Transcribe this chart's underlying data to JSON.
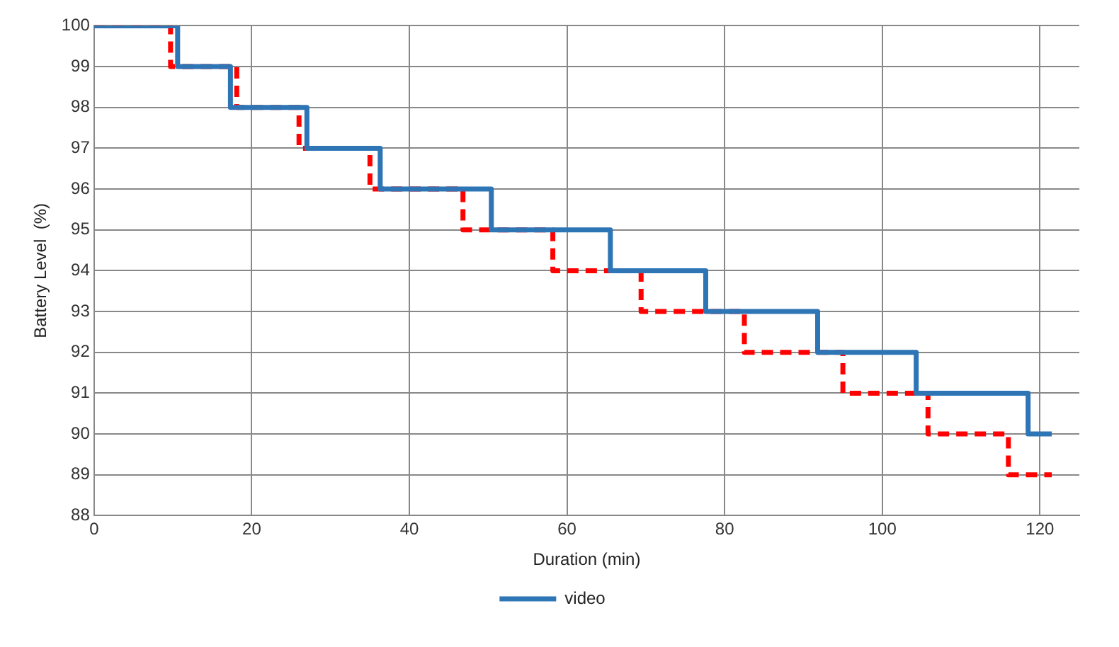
{
  "chart_data": {
    "type": "step",
    "xlabel": "Duration (min)",
    "ylabel": "Battery Level  (%)",
    "xlim": [
      0,
      125
    ],
    "xticks": [
      0,
      20,
      40,
      60,
      80,
      100,
      120
    ],
    "ylim": [
      88,
      100
    ],
    "yticks": [
      88,
      89,
      90,
      91,
      92,
      93,
      94,
      95,
      96,
      97,
      98,
      99,
      100
    ],
    "grid": true,
    "legend": "bottom",
    "marker": "none",
    "series": [
      {
        "name": "video",
        "color": "#2e75b6",
        "line_style": "solid",
        "x": [
          0,
          10.6,
          17.3,
          27,
          36.3,
          50.4,
          65.5,
          77.6,
          91.8,
          104.3,
          118.5,
          121.5
        ],
        "values": [
          100,
          99,
          98,
          97,
          96,
          95,
          94,
          93,
          92,
          91,
          90,
          90
        ]
      },
      {
        "color": "#ff0000",
        "line_style": "dashed",
        "x": [
          0,
          9.7,
          18.1,
          26,
          35,
          46.8,
          58.2,
          69.4,
          82.5,
          95,
          105.8,
          116,
          121.5
        ],
        "values": [
          100,
          99,
          98,
          97,
          96,
          95,
          94,
          93,
          92,
          91,
          90,
          89,
          89
        ]
      }
    ]
  }
}
